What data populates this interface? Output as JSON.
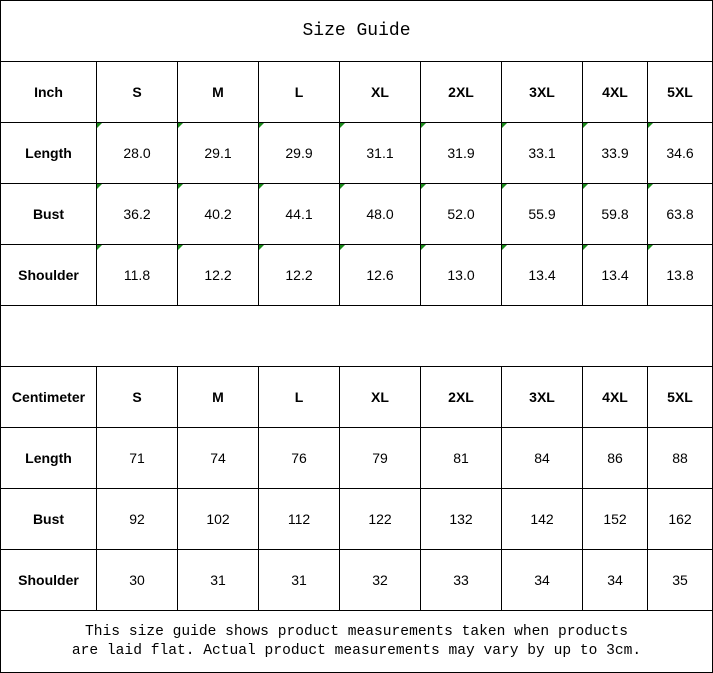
{
  "title": "Size Guide",
  "colors": {
    "flag": "#1a8a1a"
  },
  "tables": [
    {
      "unit": "Inch",
      "sizes": [
        "S",
        "M",
        "L",
        "XL",
        "2XL",
        "3XL",
        "4XL",
        "5XL"
      ],
      "rows": [
        {
          "label": "Length",
          "values": [
            "28.0",
            "29.1",
            "29.9",
            "31.1",
            "31.9",
            "33.1",
            "33.9",
            "34.6"
          ]
        },
        {
          "label": "Bust",
          "values": [
            "36.2",
            "40.2",
            "44.1",
            "48.0",
            "52.0",
            "55.9",
            "59.8",
            "63.8"
          ]
        },
        {
          "label": "Shoulder",
          "values": [
            "11.8",
            "12.2",
            "12.2",
            "12.6",
            "13.0",
            "13.4",
            "13.4",
            "13.8"
          ]
        }
      ]
    },
    {
      "unit": "Centimeter",
      "sizes": [
        "S",
        "M",
        "L",
        "XL",
        "2XL",
        "3XL",
        "4XL",
        "5XL"
      ],
      "rows": [
        {
          "label": "Length",
          "values": [
            "71",
            "74",
            "76",
            "79",
            "81",
            "84",
            "86",
            "88"
          ]
        },
        {
          "label": "Bust",
          "values": [
            "92",
            "102",
            "112",
            "122",
            "132",
            "142",
            "152",
            "162"
          ]
        },
        {
          "label": "Shoulder",
          "values": [
            "30",
            "31",
            "31",
            "32",
            "33",
            "34",
            "34",
            "35"
          ]
        }
      ]
    }
  ],
  "note": [
    "This size guide shows product measurements taken when products",
    "are laid flat. Actual product measurements may vary by up to 3cm."
  ]
}
